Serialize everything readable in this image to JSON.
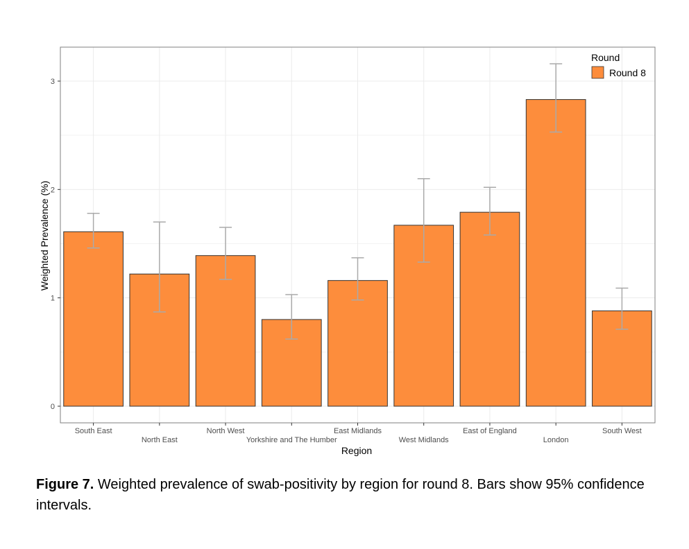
{
  "chart_data": {
    "type": "bar",
    "categories": [
      "South East",
      "North East",
      "North West",
      "Yorkshire and The Humber",
      "East Midlands",
      "West Midlands",
      "East of England",
      "London",
      "South West"
    ],
    "series": [
      {
        "name": "Round 8",
        "values": [
          1.61,
          1.22,
          1.39,
          0.8,
          1.16,
          1.67,
          1.79,
          2.83,
          0.88
        ],
        "ci_lower": [
          1.46,
          0.87,
          1.17,
          0.62,
          0.98,
          1.33,
          1.58,
          2.53,
          0.71
        ],
        "ci_upper": [
          1.78,
          1.7,
          1.65,
          1.03,
          1.37,
          2.1,
          2.02,
          3.16,
          1.09
        ]
      }
    ],
    "xlabel": "Region",
    "ylabel": "Weighted Prevalence (%)",
    "ylim": [
      0,
      3.3
    ],
    "yticks": [
      0,
      1,
      2,
      3
    ],
    "grid": true,
    "legend": {
      "title": "Round",
      "placement": "top-right"
    },
    "colors": {
      "bar": "#fd8d3c",
      "bar_stroke": "#333333",
      "errorbar": "#aaaaaa",
      "grid": "#ebebeb",
      "panel_border": "#7f7f7f"
    }
  },
  "caption": {
    "label": "Figure 7.",
    "text": " Weighted prevalence of swab-positivity by region for round 8. Bars show 95% confidence intervals."
  }
}
